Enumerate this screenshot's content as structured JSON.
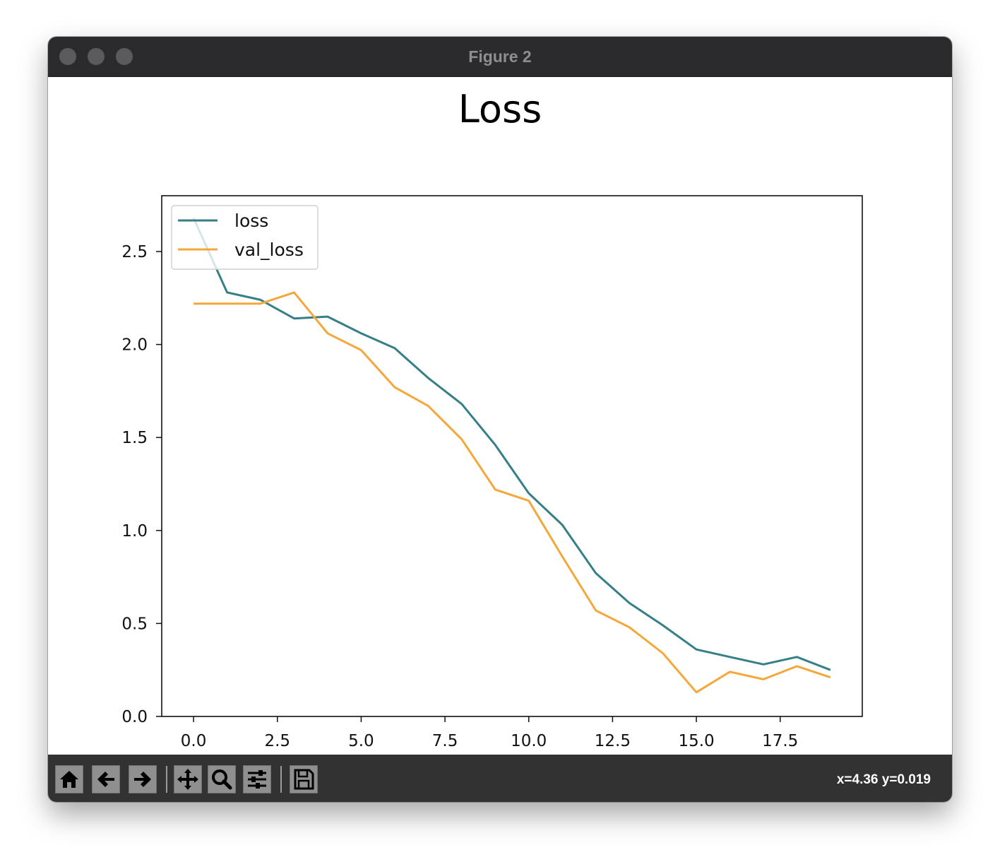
{
  "window": {
    "title": "Figure 2"
  },
  "toolbar": {
    "buttons": [
      {
        "icon": "home-icon"
      },
      {
        "icon": "back-arrow-icon"
      },
      {
        "icon": "forward-arrow-icon"
      },
      {
        "icon": "pan-icon"
      },
      {
        "icon": "zoom-icon"
      },
      {
        "icon": "configure-subplots-icon"
      },
      {
        "icon": "save-icon"
      }
    ],
    "coordinates": "x=4.36 y=0.019"
  },
  "chart_data": {
    "type": "line",
    "title": "Loss",
    "xlabel": "",
    "ylabel": "",
    "xlim": [
      -0.95,
      19.95
    ],
    "ylim": [
      0.0,
      2.8
    ],
    "xticks": [
      "0.0",
      "2.5",
      "5.0",
      "7.5",
      "10.0",
      "12.5",
      "15.0",
      "17.5"
    ],
    "yticks": [
      "0.0",
      "0.5",
      "1.0",
      "1.5",
      "2.0",
      "2.5"
    ],
    "grid": false,
    "legend_position": "upper-left",
    "x": [
      0,
      1,
      2,
      3,
      4,
      5,
      6,
      7,
      8,
      9,
      10,
      11,
      12,
      13,
      14,
      15,
      16,
      17,
      18,
      19
    ],
    "series": [
      {
        "name": "loss",
        "color": "#358087",
        "values": [
          2.68,
          2.28,
          2.24,
          2.14,
          2.15,
          2.06,
          1.98,
          1.82,
          1.68,
          1.46,
          1.2,
          1.03,
          0.77,
          0.61,
          0.49,
          0.36,
          0.32,
          0.28,
          0.32,
          0.25
        ]
      },
      {
        "name": "val_loss",
        "color": "#f5a83a",
        "values": [
          2.22,
          2.22,
          2.22,
          2.28,
          2.06,
          1.97,
          1.77,
          1.67,
          1.49,
          1.22,
          1.16,
          0.86,
          0.57,
          0.48,
          0.34,
          0.13,
          0.24,
          0.2,
          0.27,
          0.21
        ]
      }
    ]
  }
}
